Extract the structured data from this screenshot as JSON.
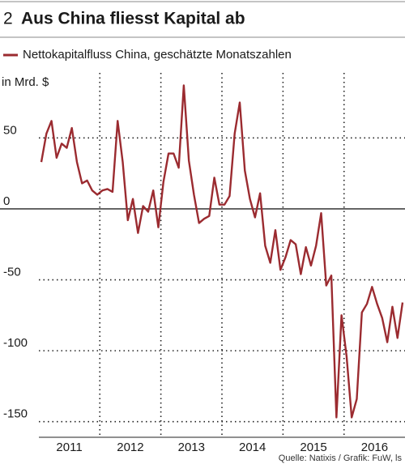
{
  "chart_data": {
    "type": "line",
    "number": "2",
    "title": "Aus China fliesst Kapital ab",
    "y_label": "in Mrd. $",
    "source": "Quelle: Natixis / Grafik: FuW, ls",
    "categories": [
      null,
      null,
      null,
      null,
      null,
      null,
      "2011",
      null,
      null,
      null,
      null,
      null,
      null,
      null,
      null,
      null,
      null,
      null,
      "2012",
      null,
      null,
      null,
      null,
      null,
      null,
      null,
      null,
      null,
      null,
      null,
      "2013",
      null,
      null,
      null,
      null,
      null,
      null,
      null,
      null,
      null,
      null,
      null,
      "2014",
      null,
      null,
      null,
      null,
      null,
      null,
      null,
      null,
      null,
      null,
      null,
      "2015",
      null,
      null,
      null,
      null,
      null,
      null,
      null,
      null,
      null,
      null,
      null,
      "2016",
      null,
      null,
      null,
      null,
      null
    ],
    "series": [
      {
        "name": "Nettokapitalfluss China, geschätzte Monatszahlen",
        "color": "#9b2b30",
        "values": [
          33,
          53,
          62,
          36,
          46,
          43,
          57,
          33,
          18,
          20,
          13,
          10,
          13,
          14,
          12,
          62,
          33,
          -8,
          7,
          -17,
          2,
          -2,
          13,
          -13,
          19,
          39,
          39,
          29,
          87,
          34,
          10,
          -10,
          -7,
          -5,
          22,
          3,
          3,
          9,
          53,
          75,
          27,
          7,
          -6,
          11,
          -26,
          -38,
          -15,
          -43,
          -34,
          -22,
          -25,
          -46,
          -27,
          -40,
          -26,
          -3,
          -54,
          -47,
          -147,
          -75,
          -104,
          -147,
          -134,
          -73,
          -67,
          -55,
          -67,
          -77,
          -94,
          -69,
          -91,
          -66
        ]
      }
    ],
    "ylim": [
      -161,
      93
    ],
    "yticks": [
      50,
      0,
      -50,
      -100,
      -150
    ],
    "grid": true
  }
}
